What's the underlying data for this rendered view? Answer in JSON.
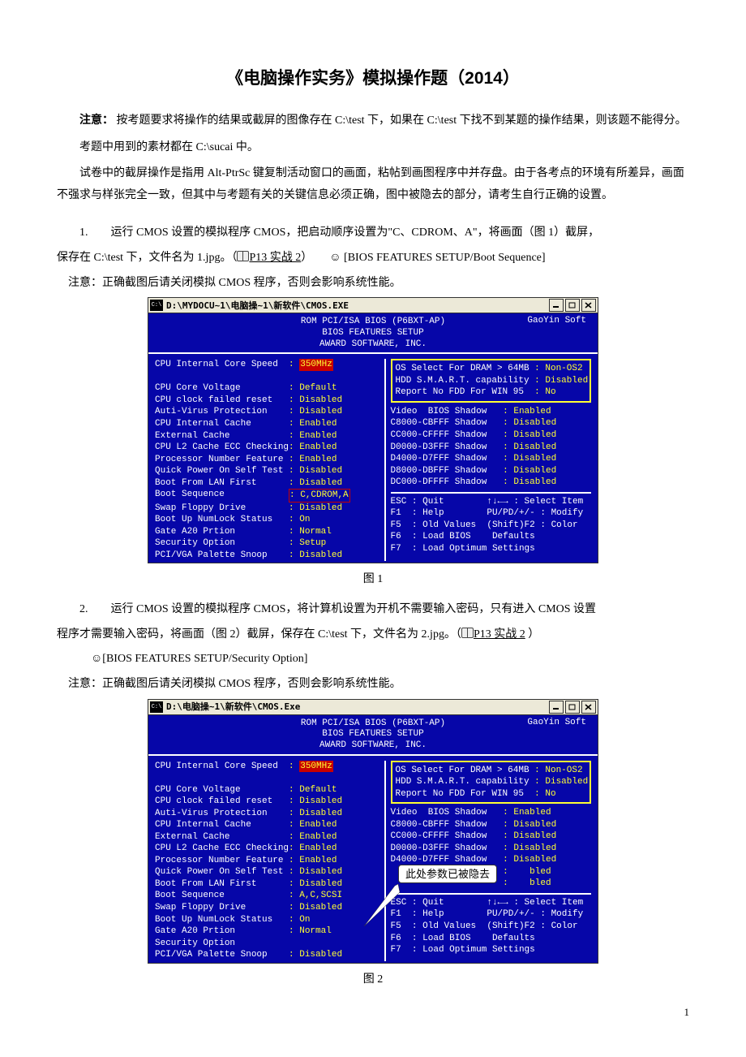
{
  "doc": {
    "title": "《电脑操作实务》模拟操作题（2014）",
    "intro1_bold": "注意：",
    "intro1": " 按考题要求将操作的结果或截屏的图像存在 C:\\test 下，如果在 C:\\test 下找不到某题的操作结果，则该题不能得分。",
    "intro2": "考题中用到的素材都在 C:\\sucai 中。",
    "intro3": "试卷中的截屏操作是指用 Alt-PtrSc 键复制活动窗口的画面，粘帖到画图程序中并存盘。由于各考点的环境有所差异，画面不强求与样张完全一致，但其中与考题有关的关键信息必须正确，图中被隐去的部分，请考生自行正确的设置。",
    "q1a": "1.　　运行 CMOS 设置的模拟程序 CMOS，把启动顺序设置为\"C、CDROM、A\"，将画面（图 1）截屏，",
    "q1b": "保存在 C:\\test 下，文件名为 1.jpg。（",
    "q1ref": "P13 实战 2",
    "q1c": "）　　☺ [BIOS FEATURES SETUP/Boot Sequence]",
    "q1note": "注意：正确截图后请关闭模拟 CMOS 程序，否则会影响系统性能。",
    "fig1": "图 1",
    "q2a": "2.　　运行 CMOS 设置的模拟程序 CMOS，将计算机设置为开机不需要输入密码，只有进入 CMOS 设置",
    "q2b": "程序才需要输入密码，将画面（图 2）截屏，保存在 C:\\test 下，文件名为 2.jpg。（",
    "q2ref": "P13 实战 2",
    "q2c": " ）",
    "q2d": "☺[BIOS FEATURES SETUP/Security Option]",
    "q2note": "注意：正确截图后请关闭模拟 CMOS 程序，否则会影响系统性能。",
    "fig2": "图 2",
    "callout": "此处参数已被隐去",
    "pagenum": "1"
  },
  "bios1": {
    "titlebar": "D:\\MYDOCU~1\\电脑操~1\\新软件\\CMOS.EXE",
    "hdr1": "ROM PCI/ISA BIOS (P6BXT-AP)",
    "hdr2": "BIOS FEATURES SETUP",
    "hdr3": "AWARD SOFTWARE, INC.",
    "brand": "GaoYin Soft",
    "left": [
      {
        "l": "CPU Internal Core Speed  ",
        "v": "350MHz",
        "hl": true
      },
      {
        "l": "                         ",
        "v": ""
      },
      {
        "l": "CPU Core Voltage         ",
        "v": "Default"
      },
      {
        "l": "CPU clock failed reset   ",
        "v": "Disabled"
      },
      {
        "l": "Auti-Virus Protection    ",
        "v": "Disabled"
      },
      {
        "l": "CPU Internal Cache       ",
        "v": "Enabled"
      },
      {
        "l": "External Cache           ",
        "v": "Enabled"
      },
      {
        "l": "CPU L2 Cache ECC Checking",
        "v": "Enabled"
      },
      {
        "l": "Processor Number Feature ",
        "v": "Enabled"
      },
      {
        "l": "Quick Power On Self Test ",
        "v": "Disabled"
      },
      {
        "l": "Boot From LAN First      ",
        "v": "Disabled"
      },
      {
        "l": "Boot Sequence            ",
        "v": "C,CDROM,A",
        "box": true
      },
      {
        "l": "Swap Floppy Drive        ",
        "v": "Disabled"
      },
      {
        "l": "Boot Up NumLock Status   ",
        "v": "On"
      },
      {
        "l": "Gate A20 Prtion          ",
        "v": "Normal"
      },
      {
        "l": "Security Option          ",
        "v": "Setup"
      },
      {
        "l": "PCI/VGA Palette Snoop    ",
        "v": "Disabled"
      }
    ],
    "rtop": [
      {
        "l": "OS Select For DRAM > 64MB ",
        "v": "Non-OS2"
      },
      {
        "l": "HDD S.M.A.R.T. capability ",
        "v": "Disabled"
      },
      {
        "l": "Report No FDD For WIN 95  ",
        "v": "No"
      }
    ],
    "rmid": [
      {
        "l": "Video  BIOS Shadow   ",
        "v": "Enabled"
      },
      {
        "l": "C8000-CBFFF Shadow   ",
        "v": "Disabled"
      },
      {
        "l": "CC000-CFFFF Shadow   ",
        "v": "Disabled"
      },
      {
        "l": "D0000-D3FFF Shadow   ",
        "v": "Disabled"
      },
      {
        "l": "D4000-D7FFF Shadow   ",
        "v": "Disabled"
      },
      {
        "l": "D8000-DBFFF Shadow   ",
        "v": "Disabled"
      },
      {
        "l": "DC000-DFFFF Shadow   ",
        "v": "Disabled"
      }
    ],
    "rbot": [
      "ESC : Quit        ↑↓←→ : Select Item",
      "F1  : Help        PU/PD/+/- : Modify",
      "F5  : Old Values  (Shift)F2 : Color",
      "F6  : Load BIOS    Defaults",
      "F7  : Load Optimum Settings"
    ]
  },
  "bios2": {
    "titlebar": "D:\\电脑操~1\\新软件\\CMOS.Exe",
    "left": [
      {
        "l": "CPU Internal Core Speed  ",
        "v": "350MHz",
        "hl": true
      },
      {
        "l": "                         ",
        "v": ""
      },
      {
        "l": "CPU Core Voltage         ",
        "v": "Default"
      },
      {
        "l": "CPU clock failed reset   ",
        "v": "Disabled"
      },
      {
        "l": "Auti-Virus Protection    ",
        "v": "Disabled"
      },
      {
        "l": "CPU Internal Cache       ",
        "v": "Enabled"
      },
      {
        "l": "External Cache           ",
        "v": "Enabled"
      },
      {
        "l": "CPU L2 Cache ECC Checking",
        "v": "Enabled"
      },
      {
        "l": "Processor Number Feature ",
        "v": "Enabled"
      },
      {
        "l": "Quick Power On Self Test ",
        "v": "Disabled"
      },
      {
        "l": "Boot From LAN First      ",
        "v": "Disabled"
      },
      {
        "l": "Boot Sequence            ",
        "v": "A,C,SCSI"
      },
      {
        "l": "Swap Floppy Drive        ",
        "v": "Disabled"
      },
      {
        "l": "Boot Up NumLock Status   ",
        "v": "On"
      },
      {
        "l": "Gate A20 Prtion          ",
        "v": "Normal",
        "cut": true
      },
      {
        "l": "Security Option          ",
        "v": ""
      },
      {
        "l": "PCI/VGA Palette Snoop    ",
        "v": "Disabled"
      }
    ],
    "rmid": [
      {
        "l": "Video  BIOS Shadow   ",
        "v": "Enabled"
      },
      {
        "l": "C8000-CBFFF Shadow   ",
        "v": "Disabled"
      },
      {
        "l": "CC000-CFFFF Shadow   ",
        "v": "Disabled"
      },
      {
        "l": "D0000-D3FFF Shadow   ",
        "v": "Disabled"
      },
      {
        "l": "D4000-D7FFF Shadow   ",
        "v": "Disabled"
      },
      {
        "l": "                     ",
        "v": "   bled",
        "partial": true
      },
      {
        "l": "                     ",
        "v": "   bled",
        "partial": true
      }
    ]
  }
}
